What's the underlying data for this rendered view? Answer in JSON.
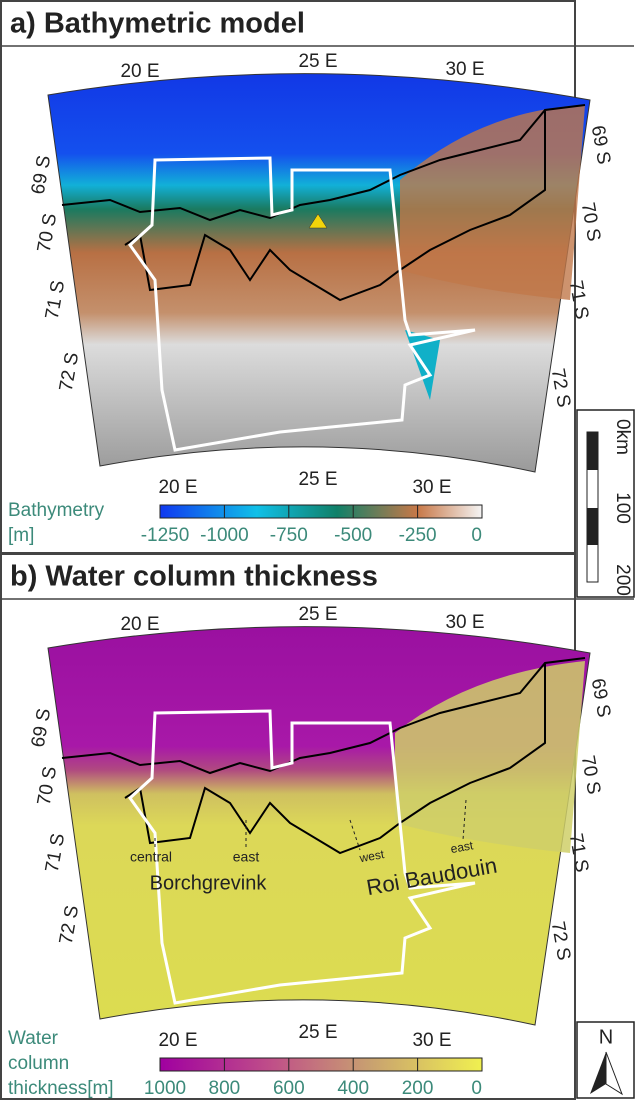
{
  "panel_a": {
    "title": "a) Bathymetric model",
    "lon_top": [
      "20 E",
      "25 E",
      "30 E"
    ],
    "lon_bottom": [
      "20 E",
      "25 E",
      "30 E"
    ],
    "lat_left": [
      "69 S",
      "70 S",
      "71 S",
      "72 S"
    ],
    "lat_right": [
      "69 S",
      "70 S",
      "71 S",
      "72 S"
    ],
    "colorbar": {
      "label_lines": [
        "Bathymetry",
        "[m]"
      ],
      "ticks": [
        -1250,
        -1000,
        -750,
        -500,
        -250,
        0
      ]
    }
  },
  "panel_b": {
    "title": "b) Water column thickness",
    "lon_top": [
      "20 E",
      "25 E",
      "30 E"
    ],
    "lon_bottom": [
      "20 E",
      "25 E",
      "30 E"
    ],
    "lat_left": [
      "69 S",
      "70 S",
      "71 S",
      "72 S"
    ],
    "lat_right": [
      "69 S",
      "70 S",
      "71 S",
      "72 S"
    ],
    "colorbar": {
      "label_lines": [
        "Water",
        "column",
        "thickness[m]"
      ],
      "ticks": [
        1000,
        800,
        600,
        400,
        200,
        0
      ]
    },
    "annotations": [
      "central",
      "Borchgrevink",
      "east",
      "west",
      "east",
      "Roi Baudouin"
    ]
  },
  "scale_bar": {
    "labels": [
      "0km",
      "100",
      "200"
    ]
  },
  "north_arrow": "N"
}
